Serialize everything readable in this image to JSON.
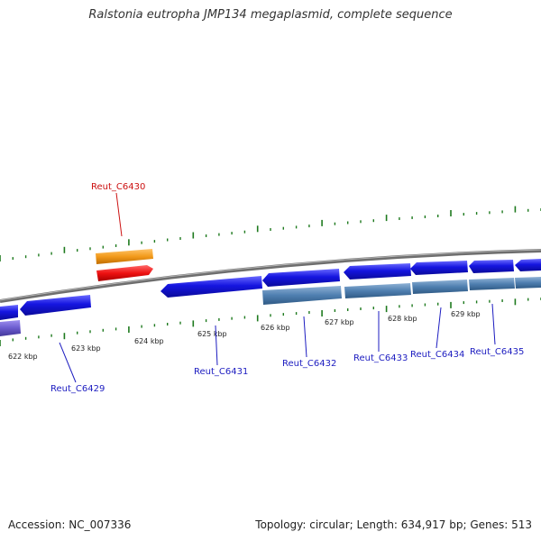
{
  "title": "Ralstonia eutropha JMP134 megaplasmid, complete sequence",
  "footer": {
    "accession": "Accession: NC_007336",
    "summary": "Topology: circular; Length: 634,917 bp; Genes: 513"
  },
  "scale_labels": [
    "622 kbp",
    "623 kbp",
    "624 kbp",
    "625 kbp",
    "626 kbp",
    "627 kbp",
    "628 kbp",
    "629 kbp"
  ],
  "gene_labels": [
    "Reut_C6430",
    "Reut_C6429",
    "Reut_C6431",
    "Reut_C6432",
    "Reut_C6433",
    "Reut_C6434",
    "Reut_C6435"
  ],
  "colors": {
    "backbone": "#888888",
    "tick": "#1e7a1e",
    "cds_blue": "#1515e0",
    "cds_steel": "#4f7fb0",
    "cds_orange": "#f29a1b",
    "cds_red": "#ee1111",
    "cds_purple": "#6a5acd",
    "label_blue": "#1c1cc0",
    "label_red": "#cc1111"
  }
}
